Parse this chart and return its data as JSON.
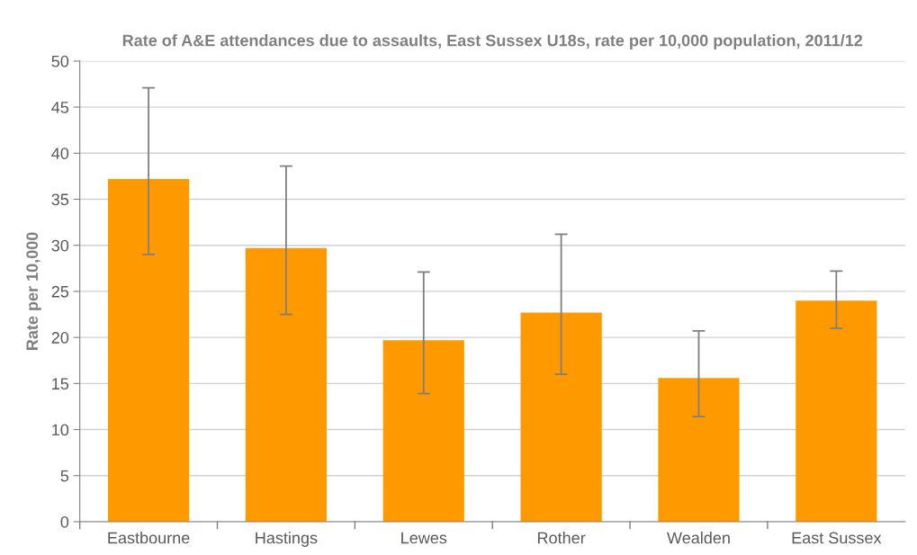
{
  "chart_data": {
    "type": "bar",
    "title": "Rate of A&E attendances due to assaults, East Sussex U18s, rate per 10,000 population, 2011/12",
    "ylabel": "Rate per 10,000",
    "categories": [
      "Eastbourne",
      "Hastings",
      "Lewes",
      "Rother",
      "Wealden",
      "East Sussex"
    ],
    "values": [
      37.2,
      29.7,
      19.7,
      22.7,
      15.6,
      24.0
    ],
    "errors": [
      [
        29.0,
        47.1
      ],
      [
        22.5,
        38.6
      ],
      [
        13.9,
        27.1
      ],
      [
        16.0,
        31.2
      ],
      [
        11.4,
        20.7
      ],
      [
        21.0,
        27.2
      ]
    ],
    "color": "#ff9900",
    "ylim": [
      0,
      50
    ],
    "yticks": [
      0,
      5,
      10,
      15,
      20,
      25,
      30,
      35,
      40,
      45,
      50
    ],
    "grid": "y",
    "legend": false
  }
}
